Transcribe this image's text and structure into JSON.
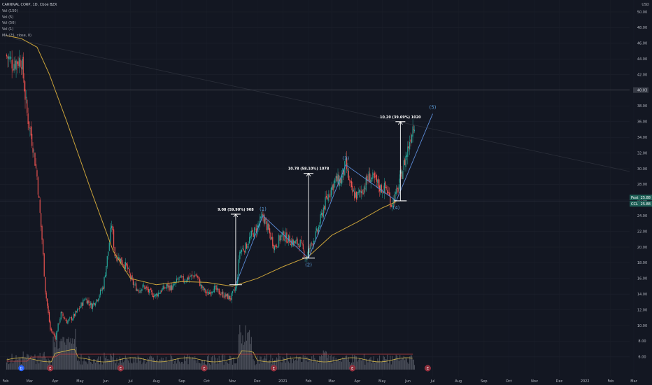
{
  "legend": {
    "symbol_line": "CARNIVAL CORP, 1D, Cboe BZX",
    "vol150": "Vol (150)",
    "vol5": "Vol (5)",
    "vol50": "Vol (50)",
    "vol1": "Vol (1)",
    "ma": "MA (75, close, 0)"
  },
  "currency": "USD",
  "colors": {
    "background": "#131722",
    "up": "#26a69a",
    "down": "#ef5350",
    "ma": "#c9a23a",
    "wave": "#5b8bd6",
    "measure": "#ffffff",
    "wave_label": "#5b9bd6",
    "volume": "#787b86",
    "vol_line_yellow": "#d4b84a",
    "vol_line_red": "#c84040",
    "event_badge": "#8b2d3a",
    "dividend_badge": "#2962ff"
  },
  "chart_data": {
    "type": "candlestick",
    "title": "CARNIVAL CORP, 1D, Cboe BZX",
    "xlabel": "",
    "ylabel": "USD",
    "ylim": [
      5,
      51
    ],
    "y_ticks": [
      6,
      8,
      10,
      12,
      14,
      16,
      18,
      20,
      22,
      24,
      26,
      28,
      30,
      32,
      34,
      36,
      38,
      40,
      42,
      44,
      46,
      48,
      50
    ],
    "y_tick_labels": [
      "6.00",
      "8.00",
      "10.00",
      "12.00",
      "14.00",
      "16.00",
      "18.00",
      "20.00",
      "22.00",
      "24.00",
      "26.00",
      "28.00",
      "30.00",
      "32.00",
      "34.00",
      "36.00",
      "38.00",
      "40.00",
      "42.00",
      "44.00",
      "46.00",
      "48.00",
      "50.00"
    ],
    "x_tick_labels": [
      "Feb",
      "Mar",
      "Apr",
      "May",
      "Jun",
      "Jul",
      "Aug",
      "Sep",
      "Oct",
      "Nov",
      "Dec",
      "2021",
      "Feb",
      "Mar",
      "Apr",
      "May",
      "Jun",
      "Jul",
      "Aug",
      "Sep",
      "Oct",
      "Nov",
      "Dec",
      "2022",
      "Feb",
      "Mar"
    ],
    "price_series": [
      [
        "2020-02-01",
        44.5
      ],
      [
        "2020-02-10",
        43.5
      ],
      [
        "2020-02-20",
        44.0
      ],
      [
        "2020-02-27",
        37.0
      ],
      [
        "2020-03-05",
        33.0
      ],
      [
        "2020-03-10",
        29.0
      ],
      [
        "2020-03-16",
        21.0
      ],
      [
        "2020-03-20",
        14.5
      ],
      [
        "2020-03-26",
        9.5
      ],
      [
        "2020-04-01",
        8.5
      ],
      [
        "2020-04-08",
        11.5
      ],
      [
        "2020-04-15",
        10.5
      ],
      [
        "2020-04-22",
        11.0
      ],
      [
        "2020-04-30",
        12.2
      ],
      [
        "2020-05-07",
        13.5
      ],
      [
        "2020-05-15",
        12.5
      ],
      [
        "2020-05-22",
        13.5
      ],
      [
        "2020-05-29",
        15.0
      ],
      [
        "2020-06-04",
        19.5
      ],
      [
        "2020-06-08",
        23.0
      ],
      [
        "2020-06-12",
        19.0
      ],
      [
        "2020-06-18",
        18.5
      ],
      [
        "2020-06-26",
        17.5
      ],
      [
        "2020-07-03",
        15.5
      ],
      [
        "2020-07-10",
        14.5
      ],
      [
        "2020-07-17",
        15.0
      ],
      [
        "2020-07-24",
        14.2
      ],
      [
        "2020-07-31",
        13.8
      ],
      [
        "2020-08-07",
        14.5
      ],
      [
        "2020-08-14",
        15.0
      ],
      [
        "2020-08-21",
        14.8
      ],
      [
        "2020-08-28",
        16.0
      ],
      [
        "2020-09-04",
        15.8
      ],
      [
        "2020-09-11",
        16.2
      ],
      [
        "2020-09-18",
        16.5
      ],
      [
        "2020-09-25",
        14.8
      ],
      [
        "2020-10-02",
        14.0
      ],
      [
        "2020-10-09",
        14.8
      ],
      [
        "2020-10-16",
        14.2
      ],
      [
        "2020-10-23",
        13.8
      ],
      [
        "2020-10-30",
        13.5
      ],
      [
        "2020-11-06",
        15.0
      ],
      [
        "2020-11-10",
        19.5
      ],
      [
        "2020-11-17",
        20.0
      ],
      [
        "2020-11-24",
        21.5
      ],
      [
        "2020-12-01",
        22.5
      ],
      [
        "2020-12-08",
        24.0
      ],
      [
        "2020-12-15",
        22.0
      ],
      [
        "2020-12-22",
        20.0
      ],
      [
        "2020-12-31",
        21.6
      ],
      [
        "2021-01-08",
        21.0
      ],
      [
        "2021-01-15",
        20.5
      ],
      [
        "2021-01-22",
        20.5
      ],
      [
        "2021-01-29",
        18.6
      ],
      [
        "2021-02-05",
        20.5
      ],
      [
        "2021-02-12",
        22.0
      ],
      [
        "2021-02-19",
        25.0
      ],
      [
        "2021-02-26",
        27.0
      ],
      [
        "2021-03-05",
        28.5
      ],
      [
        "2021-03-12",
        28.5
      ],
      [
        "2021-03-18",
        30.5
      ],
      [
        "2021-03-25",
        27.0
      ],
      [
        "2021-04-01",
        26.5
      ],
      [
        "2021-04-08",
        27.5
      ],
      [
        "2021-04-15",
        29.0
      ],
      [
        "2021-04-22",
        28.5
      ],
      [
        "2021-04-29",
        27.5
      ],
      [
        "2021-05-06",
        27.5
      ],
      [
        "2021-05-12",
        25.5
      ],
      [
        "2021-05-19",
        27.0
      ],
      [
        "2021-05-26",
        30.0
      ],
      [
        "2021-06-02",
        33.0
      ],
      [
        "2021-06-07",
        35.5
      ],
      [
        "2021-06-09",
        36.0
      ]
    ],
    "moving_average": {
      "name": "MA (75, close, 0)",
      "points": [
        [
          "2020-02-01",
          47.0
        ],
        [
          "2020-02-20",
          46.6
        ],
        [
          "2020-03-10",
          45.5
        ],
        [
          "2020-03-25",
          42.0
        ],
        [
          "2020-04-15",
          36.0
        ],
        [
          "2020-05-15",
          27.0
        ],
        [
          "2020-06-10",
          19.5
        ],
        [
          "2020-07-01",
          16.0
        ],
        [
          "2020-08-01",
          15.2
        ],
        [
          "2020-09-01",
          15.6
        ],
        [
          "2020-10-01",
          15.5
        ],
        [
          "2020-11-01",
          15.0
        ],
        [
          "2020-12-01",
          16.0
        ],
        [
          "2021-01-01",
          17.5
        ],
        [
          "2021-02-01",
          18.8
        ],
        [
          "2021-03-01",
          21.5
        ],
        [
          "2021-04-01",
          23.2
        ],
        [
          "2021-05-01",
          25.0
        ],
        [
          "2021-05-18",
          25.8
        ]
      ]
    },
    "annotations": {
      "current_price": 40.03,
      "current_price_label": "40.03",
      "post_label": "Post",
      "post_value": "25.88",
      "ccl_label": "CCL",
      "ccl_value": "25.88",
      "measures": [
        {
          "label": "9.08 (59.90%) 908",
          "from": [
            "2020-11-05",
            15.2
          ],
          "to": [
            "2020-11-05",
            24.2
          ]
        },
        {
          "label": "10.78 (58.10%) 1078",
          "from": [
            "2021-02-01",
            18.6
          ],
          "to": [
            "2021-02-01",
            29.4
          ]
        },
        {
          "label": "10.20 (39.69%) 1020",
          "from": [
            "2021-05-23",
            25.9
          ],
          "to": [
            "2021-05-23",
            36.0
          ]
        }
      ],
      "waves": [
        {
          "label": "(1)",
          "date": "2020-12-08",
          "price": 24.0
        },
        {
          "label": "(2)",
          "date": "2021-02-01",
          "price": 18.6
        },
        {
          "label": "(3)",
          "date": "2021-03-18",
          "price": 30.5
        },
        {
          "label": "(4)",
          "date": "2021-05-18",
          "price": 25.9
        },
        {
          "label": "(5)",
          "date": "2021-07-01",
          "price": 37.0
        }
      ],
      "event_badge_label": "E",
      "dividend_badge_label": "D"
    }
  }
}
